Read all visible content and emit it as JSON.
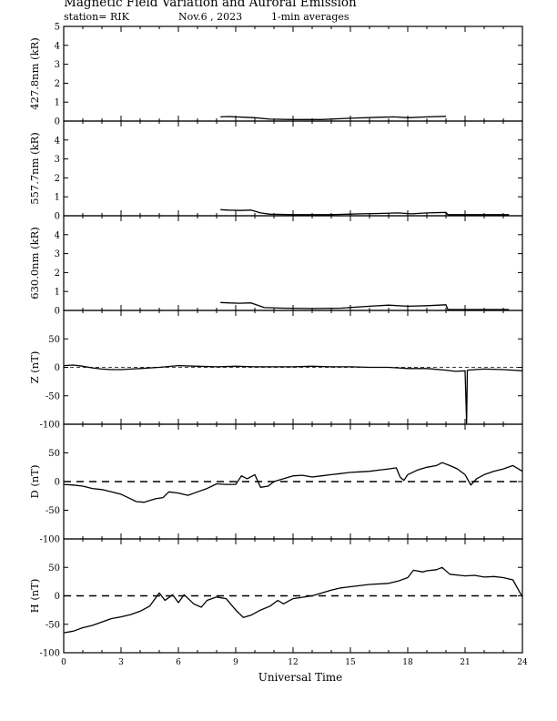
{
  "header": {
    "title": "Magnetic Field Variation and Auroral Emission",
    "station": "station= RIK",
    "date": "Nov.6 , 2023",
    "averaging": "1-min averages"
  },
  "chart_data": [
    {
      "type": "line",
      "ylabel": "427.8nm (kR)",
      "ylim": [
        0,
        5
      ],
      "yticks": [
        0,
        1,
        2,
        3,
        4,
        5
      ],
      "xlim": [
        0,
        24
      ],
      "series": [
        {
          "values": [
            [
              8.2,
              0.22
            ],
            [
              8.6,
              0.24
            ],
            [
              9.0,
              0.22
            ],
            [
              9.5,
              0.2
            ],
            [
              10.0,
              0.18
            ],
            [
              10.8,
              0.1
            ],
            [
              12.0,
              0.08
            ],
            [
              13.5,
              0.08
            ],
            [
              15.0,
              0.15
            ],
            [
              16.5,
              0.2
            ],
            [
              17.3,
              0.22
            ],
            [
              18.0,
              0.18
            ],
            [
              19.0,
              0.22
            ],
            [
              20.0,
              0.25
            ]
          ]
        }
      ]
    },
    {
      "type": "line",
      "ylabel": "557.7nm (kR)",
      "ylim": [
        0,
        5
      ],
      "yticks": [
        0,
        1,
        2,
        3,
        4
      ],
      "xlim": [
        0,
        24
      ],
      "series": [
        {
          "values": [
            [
              8.2,
              0.32
            ],
            [
              8.6,
              0.3
            ],
            [
              9.2,
              0.28
            ],
            [
              9.8,
              0.3
            ],
            [
              10.3,
              0.15
            ],
            [
              10.8,
              0.08
            ],
            [
              12.0,
              0.06
            ],
            [
              14.0,
              0.06
            ],
            [
              15.5,
              0.1
            ],
            [
              16.5,
              0.12
            ],
            [
              17.5,
              0.15
            ],
            [
              18.2,
              0.1
            ],
            [
              19.0,
              0.15
            ],
            [
              20.0,
              0.18
            ],
            [
              20.1,
              0.06
            ],
            [
              23.3,
              0.06
            ]
          ]
        }
      ]
    },
    {
      "type": "line",
      "ylabel": "630.0nm (kR)",
      "ylim": [
        0,
        5
      ],
      "yticks": [
        0,
        1,
        2,
        3,
        4
      ],
      "xlim": [
        0,
        24
      ],
      "series": [
        {
          "values": [
            [
              8.2,
              0.42
            ],
            [
              8.6,
              0.4
            ],
            [
              9.2,
              0.38
            ],
            [
              9.8,
              0.4
            ],
            [
              10.5,
              0.15
            ],
            [
              11.5,
              0.12
            ],
            [
              13.0,
              0.1
            ],
            [
              14.5,
              0.12
            ],
            [
              16.0,
              0.22
            ],
            [
              17.0,
              0.28
            ],
            [
              18.0,
              0.22
            ],
            [
              19.0,
              0.25
            ],
            [
              20.0,
              0.3
            ],
            [
              20.1,
              0.05
            ],
            [
              23.3,
              0.05
            ]
          ]
        }
      ]
    },
    {
      "type": "line",
      "ylabel": "Z (nT)",
      "ylim": [
        -100,
        100
      ],
      "yticks": [
        -100,
        -50,
        0,
        50
      ],
      "xlim": [
        0,
        24
      ],
      "baseline": 0,
      "series": [
        {
          "values": [
            [
              0,
              3
            ],
            [
              0.5,
              4
            ],
            [
              1,
              2
            ],
            [
              1.5,
              -1
            ],
            [
              2,
              -3
            ],
            [
              2.5,
              -4
            ],
            [
              3,
              -4
            ],
            [
              3.5,
              -3
            ],
            [
              4,
              -2
            ],
            [
              5,
              0
            ],
            [
              6,
              3
            ],
            [
              7,
              2
            ],
            [
              8,
              1
            ],
            [
              9,
              2
            ],
            [
              10,
              1
            ],
            [
              11,
              1
            ],
            [
              12,
              1
            ],
            [
              13,
              2
            ],
            [
              14,
              1
            ],
            [
              15,
              1
            ],
            [
              16,
              0
            ],
            [
              17,
              0
            ],
            [
              17.5,
              -1
            ],
            [
              18,
              -2
            ],
            [
              19,
              -2
            ],
            [
              20,
              -5
            ],
            [
              20.5,
              -7
            ],
            [
              21,
              -6
            ],
            [
              21.08,
              -98
            ],
            [
              21.12,
              -5
            ],
            [
              21.5,
              -4
            ],
            [
              22,
              -3
            ],
            [
              23,
              -4
            ],
            [
              23.5,
              -5
            ],
            [
              24,
              -6
            ]
          ]
        }
      ]
    },
    {
      "type": "line",
      "ylabel": "D (nT)",
      "ylim": [
        -100,
        100
      ],
      "yticks": [
        -100,
        -50,
        0,
        50
      ],
      "xlim": [
        0,
        24
      ],
      "baseline": 0,
      "series": [
        {
          "values": [
            [
              0,
              -5
            ],
            [
              0.5,
              -6
            ],
            [
              1,
              -8
            ],
            [
              1.5,
              -12
            ],
            [
              2,
              -14
            ],
            [
              2.5,
              -18
            ],
            [
              3,
              -22
            ],
            [
              3.5,
              -30
            ],
            [
              3.8,
              -35
            ],
            [
              4.2,
              -36
            ],
            [
              4.8,
              -30
            ],
            [
              5.2,
              -28
            ],
            [
              5.5,
              -18
            ],
            [
              6,
              -20
            ],
            [
              6.5,
              -24
            ],
            [
              7,
              -18
            ],
            [
              7.5,
              -12
            ],
            [
              8,
              -4
            ],
            [
              8.5,
              -5
            ],
            [
              9,
              -5
            ],
            [
              9.3,
              10
            ],
            [
              9.6,
              5
            ],
            [
              10,
              12
            ],
            [
              10.3,
              -10
            ],
            [
              10.7,
              -8
            ],
            [
              11,
              0
            ],
            [
              11.5,
              5
            ],
            [
              12,
              10
            ],
            [
              12.5,
              11
            ],
            [
              13,
              8
            ],
            [
              13.5,
              10
            ],
            [
              14,
              12
            ],
            [
              14.5,
              14
            ],
            [
              15,
              16
            ],
            [
              15.5,
              17
            ],
            [
              16,
              18
            ],
            [
              16.5,
              20
            ],
            [
              17,
              22
            ],
            [
              17.4,
              24
            ],
            [
              17.6,
              8
            ],
            [
              17.8,
              2
            ],
            [
              18,
              12
            ],
            [
              18.5,
              20
            ],
            [
              19,
              25
            ],
            [
              19.5,
              28
            ],
            [
              19.8,
              33
            ],
            [
              20.2,
              28
            ],
            [
              20.6,
              22
            ],
            [
              21,
              12
            ],
            [
              21.3,
              -6
            ],
            [
              21.6,
              5
            ],
            [
              22,
              12
            ],
            [
              22.5,
              18
            ],
            [
              23,
              22
            ],
            [
              23.5,
              28
            ],
            [
              24,
              18
            ]
          ]
        }
      ]
    },
    {
      "type": "line",
      "ylabel": "H (nT)",
      "ylim": [
        -100,
        100
      ],
      "yticks": [
        -100,
        -50,
        0,
        50
      ],
      "xaxis_label": "Universal Time",
      "xticks": [
        0,
        3,
        6,
        9,
        12,
        15,
        18,
        21,
        24
      ],
      "xlim": [
        0,
        24
      ],
      "baseline": 0,
      "series": [
        {
          "values": [
            [
              0,
              -65
            ],
            [
              0.5,
              -62
            ],
            [
              1,
              -56
            ],
            [
              1.5,
              -52
            ],
            [
              2,
              -46
            ],
            [
              2.5,
              -40
            ],
            [
              3,
              -37
            ],
            [
              3.5,
              -33
            ],
            [
              4,
              -27
            ],
            [
              4.5,
              -18
            ],
            [
              5,
              5
            ],
            [
              5.3,
              -8
            ],
            [
              5.7,
              2
            ],
            [
              6,
              -12
            ],
            [
              6.3,
              2
            ],
            [
              6.8,
              -14
            ],
            [
              7.2,
              -20
            ],
            [
              7.5,
              -8
            ],
            [
              8,
              -2
            ],
            [
              8.5,
              -5
            ],
            [
              9,
              -25
            ],
            [
              9.4,
              -38
            ],
            [
              9.8,
              -34
            ],
            [
              10.3,
              -25
            ],
            [
              10.8,
              -18
            ],
            [
              11.2,
              -8
            ],
            [
              11.5,
              -14
            ],
            [
              12,
              -5
            ],
            [
              13,
              0
            ],
            [
              13.5,
              5
            ],
            [
              14,
              10
            ],
            [
              14.5,
              14
            ],
            [
              15,
              16
            ],
            [
              16,
              20
            ],
            [
              17,
              22
            ],
            [
              17.5,
              26
            ],
            [
              18,
              32
            ],
            [
              18.3,
              45
            ],
            [
              18.8,
              42
            ],
            [
              19,
              44
            ],
            [
              19.5,
              46
            ],
            [
              19.8,
              50
            ],
            [
              20.2,
              38
            ],
            [
              21,
              35
            ],
            [
              21.5,
              36
            ],
            [
              22,
              33
            ],
            [
              22.5,
              34
            ],
            [
              23,
              32
            ],
            [
              23.5,
              28
            ],
            [
              24,
              -2
            ]
          ]
        }
      ]
    }
  ]
}
